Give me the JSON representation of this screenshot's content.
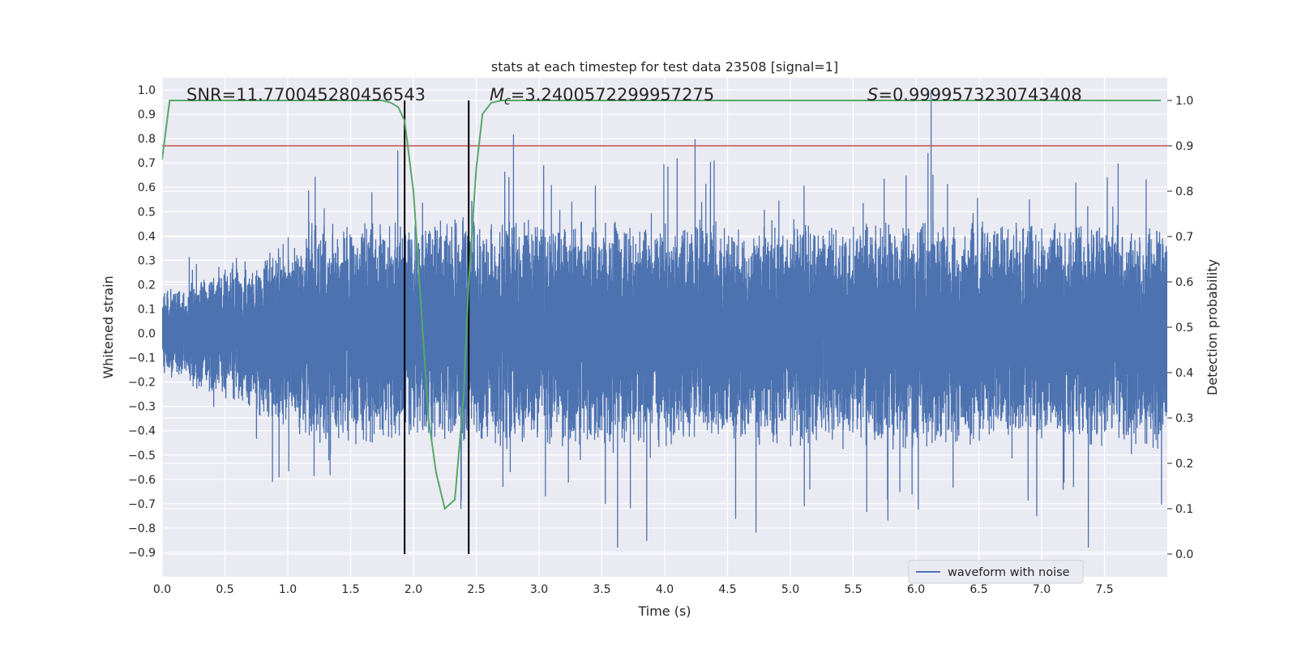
{
  "chart_data": {
    "type": "line",
    "title": "stats at each timestep for test data 23508 [signal=1]",
    "xlabel": "Time (s)",
    "ylabel": "Whitened strain",
    "y2label": "Detection probability",
    "xlim": [
      0.0,
      8.0
    ],
    "ylim": [
      -1.0,
      1.05
    ],
    "y2lim": [
      -0.05,
      1.05
    ],
    "x_ticks": [
      "0.0",
      "0.5",
      "1.0",
      "1.5",
      "2.0",
      "2.5",
      "3.0",
      "3.5",
      "4.0",
      "4.5",
      "5.0",
      "5.5",
      "6.0",
      "6.5",
      "7.0",
      "7.5"
    ],
    "y_ticks": [
      "1.0",
      "0.9",
      "0.8",
      "0.7",
      "0.6",
      "0.5",
      "0.4",
      "0.3",
      "0.2",
      "0.1",
      "0.0",
      "−0.1",
      "−0.2",
      "−0.3",
      "−0.4",
      "−0.5",
      "−0.6",
      "−0.7",
      "−0.8",
      "−0.9"
    ],
    "y2_ticks": [
      "1.0",
      "0.9",
      "0.8",
      "0.7",
      "0.6",
      "0.5",
      "0.4",
      "0.3",
      "0.2",
      "0.1",
      "0.0"
    ],
    "grid": true,
    "legend": {
      "position": "lower-right",
      "entries": [
        "waveform with noise"
      ]
    },
    "annotations": {
      "snr": "SNR=11.770045280456543",
      "mc_symbol": "M",
      "mc_sub": "c",
      "mc_value": "=3.2400572299957275",
      "s_symbol": "S",
      "s_value": "=0.9999573230743408"
    },
    "waveform": {
      "name": "waveform with noise",
      "sample_rate": 2048,
      "duration_s": 8.0,
      "approx_min": -0.88,
      "approx_max": 1.0,
      "peak_time_s": 6.12,
      "peak_value": 1.0
    },
    "threshold_line": {
      "y2": 0.9
    },
    "signal_window": {
      "start_s": 1.93,
      "end_s": 2.44
    },
    "probability": {
      "name": "Detection probability",
      "x": [
        0.0,
        0.06,
        0.2,
        0.5,
        1.0,
        1.5,
        1.75,
        1.82,
        1.88,
        1.93,
        2.0,
        2.06,
        2.12,
        2.18,
        2.25,
        2.33,
        2.4,
        2.44,
        2.5,
        2.55,
        2.62,
        2.7,
        3.0,
        4.0,
        5.0,
        6.0,
        7.0,
        7.95
      ],
      "y": [
        0.87,
        1.0,
        1.0,
        1.0,
        1.0,
        1.0,
        1.0,
        0.995,
        0.985,
        0.955,
        0.8,
        0.55,
        0.3,
        0.18,
        0.1,
        0.12,
        0.35,
        0.6,
        0.85,
        0.97,
        0.995,
        1.0,
        1.0,
        1.0,
        1.0,
        1.0,
        1.0,
        1.0
      ]
    },
    "colors": {
      "background": "#eaeaf2",
      "grid": "#ffffff",
      "waveform": "#4c72b0",
      "probability": "#55a868",
      "threshold": "#c44e52",
      "signal_window": "#000000"
    }
  }
}
